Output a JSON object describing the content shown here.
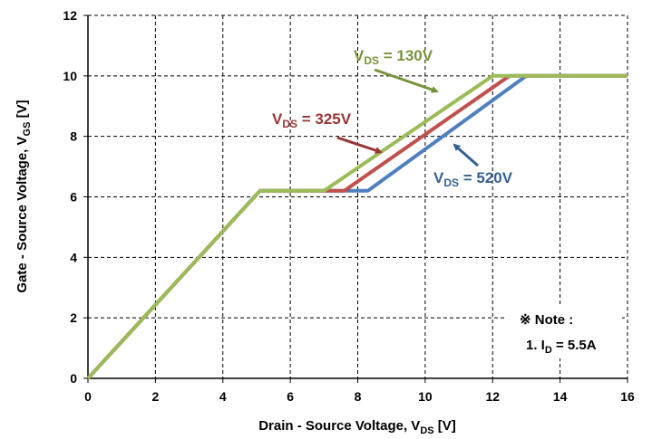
{
  "chart_data": {
    "type": "line",
    "xlabel": "Drain - Source Voltage, V",
    "xlabel_sub": "DS",
    "xlabel_unit": " [V]",
    "ylabel": "Gate - Source Voltage, V",
    "ylabel_sub": "GS",
    "ylabel_unit": " [V]",
    "xlim": [
      0,
      16
    ],
    "ylim": [
      0,
      12
    ],
    "xticks": [
      0,
      2,
      4,
      6,
      8,
      10,
      12,
      14,
      16
    ],
    "yticks": [
      0,
      2,
      4,
      6,
      8,
      10,
      12
    ],
    "grid": true,
    "series": [
      {
        "name": "VDS = 520V",
        "color": "#4f7fbf",
        "x": [
          0,
          5.1,
          8.3,
          13.0,
          16.0
        ],
        "y": [
          0,
          6.2,
          6.2,
          10.0,
          10.0
        ]
      },
      {
        "name": "VDS = 325V",
        "color": "#c0504d",
        "x": [
          0,
          5.1,
          7.6,
          12.5,
          16.0
        ],
        "y": [
          0,
          6.2,
          6.2,
          10.0,
          10.0
        ]
      },
      {
        "name": "VDS = 130V",
        "color": "#9bbb59",
        "x": [
          0,
          5.1,
          7.0,
          12.0,
          16.0
        ],
        "y": [
          0,
          6.2,
          6.2,
          10.0,
          10.0
        ]
      }
    ],
    "annotations": [
      {
        "series": 2,
        "label_main": "V",
        "label_sub": "DS",
        "label_rest": " = 130V",
        "color": "#77933c"
      },
      {
        "series": 1,
        "label_main": "V",
        "label_sub": "DS",
        "label_rest": " = 325V",
        "color": "#953735"
      },
      {
        "series": 0,
        "label_main": "V",
        "label_sub": "DS",
        "label_rest": " = 520V",
        "color": "#376092"
      }
    ],
    "note": {
      "line1": "※ Note :",
      "line2_main": "1. I",
      "line2_sub": "D",
      "line2_rest": " = 5.5A"
    }
  }
}
